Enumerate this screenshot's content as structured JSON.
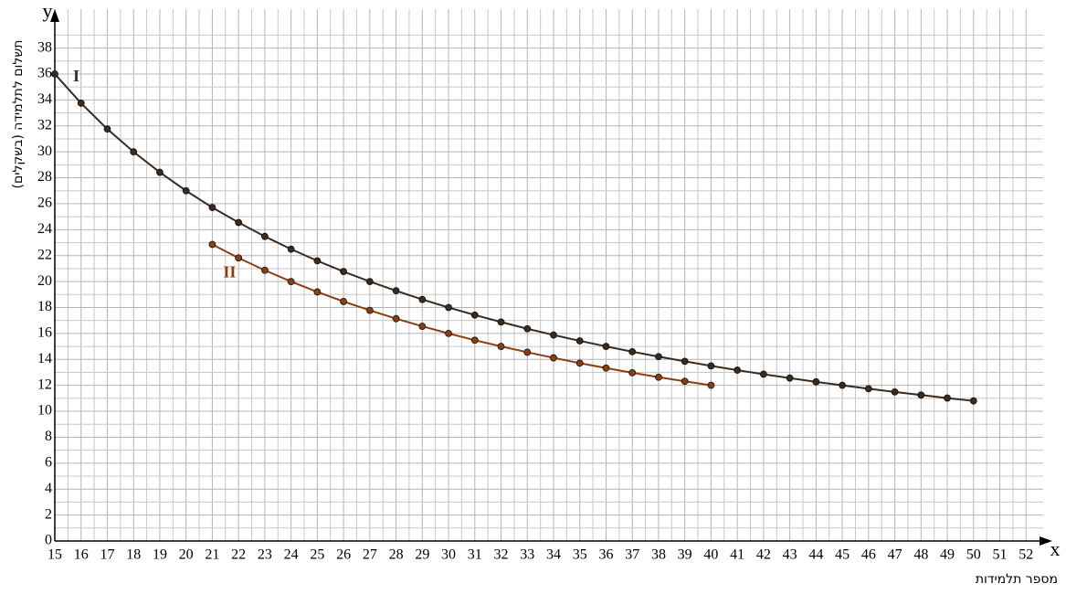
{
  "chart_data": {
    "type": "line",
    "x_label": "x",
    "y_label": "y",
    "x_title": "מספר תלמידות",
    "y_title": "תשלום לתלמידה (בשקלים)",
    "xlim": [
      15,
      53
    ],
    "ylim": [
      0,
      41
    ],
    "xticks": [
      15,
      16,
      17,
      18,
      19,
      20,
      21,
      22,
      23,
      24,
      25,
      26,
      27,
      28,
      29,
      30,
      31,
      32,
      33,
      34,
      35,
      36,
      37,
      38,
      39,
      40,
      41,
      42,
      43,
      44,
      45,
      46,
      47,
      48,
      49,
      50,
      51,
      52
    ],
    "yticks": [
      0,
      2,
      4,
      6,
      8,
      10,
      12,
      14,
      16,
      18,
      20,
      22,
      24,
      26,
      28,
      30,
      32,
      34,
      36,
      38
    ],
    "grid": true,
    "series": [
      {
        "name": "I",
        "color": "#3b2a1e",
        "x": [
          15,
          16,
          17,
          18,
          19,
          20,
          21,
          22,
          23,
          24,
          25,
          26,
          27,
          28,
          29,
          30,
          31,
          32,
          33,
          34,
          35,
          36,
          37,
          38,
          39,
          40,
          41,
          42,
          43,
          44,
          45,
          46,
          47,
          48,
          49,
          50
        ],
        "values": [
          36,
          33.75,
          31.76,
          30,
          28.42,
          27,
          25.71,
          24.55,
          23.48,
          22.5,
          21.6,
          20.77,
          20,
          19.29,
          18.62,
          18,
          17.42,
          16.88,
          16.36,
          15.88,
          15.43,
          15,
          14.59,
          14.21,
          13.85,
          13.5,
          13.17,
          12.86,
          12.56,
          12.27,
          12,
          11.74,
          11.49,
          11.25,
          11.02,
          10.8
        ]
      },
      {
        "name": "II",
        "color": "#8b3e12",
        "x": [
          21,
          22,
          23,
          24,
          25,
          26,
          27,
          28,
          29,
          30,
          31,
          32,
          33,
          34,
          35,
          36,
          37,
          38,
          39,
          40
        ],
        "values": [
          22.86,
          21.82,
          20.87,
          20,
          19.2,
          18.46,
          17.78,
          17.14,
          16.55,
          16,
          15.48,
          15,
          14.55,
          14.12,
          13.71,
          13.33,
          12.97,
          12.63,
          12.31,
          12
        ]
      }
    ]
  }
}
